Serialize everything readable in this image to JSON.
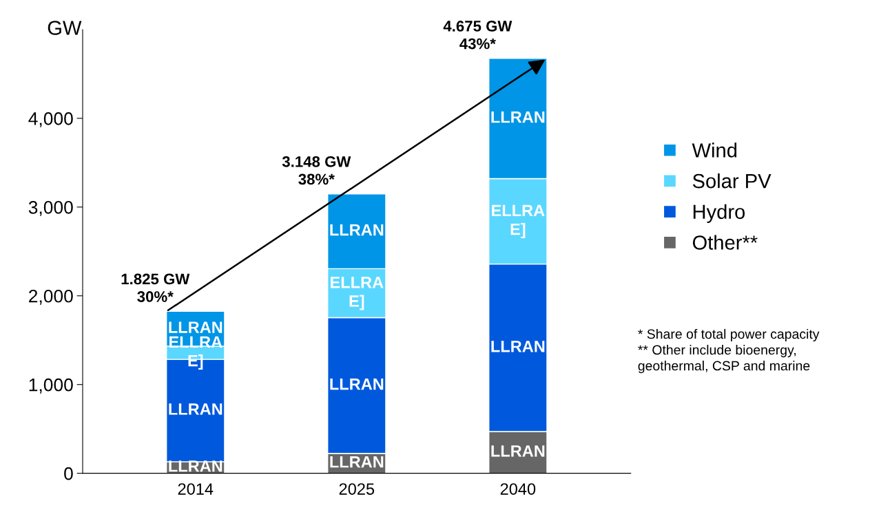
{
  "chart_data": {
    "type": "bar",
    "stacked": true,
    "ylabel": "GW",
    "categories": [
      "2014",
      "2025",
      "2040"
    ],
    "series": [
      {
        "name": "Other**",
        "color": "#666666",
        "values": [
          130,
          224,
          470
        ],
        "value_labels": [
          "LLRAN",
          "LLRAN",
          "LLRAN"
        ]
      },
      {
        "name": "Hydro",
        "color": "#0059dd",
        "values": [
          1154,
          1530,
          1888
        ],
        "value_labels": [
          "LLRAN",
          "LLRAN",
          "LLRAN"
        ]
      },
      {
        "name": "Solar PV",
        "color": "#5ad7ff",
        "values": [
          149,
          552,
          963
        ],
        "value_labels": [
          "ELLRA\nE]",
          "ELLRA\nE]",
          "ELLRA\nE]"
        ]
      },
      {
        "name": "Wind",
        "color": "#0095e6",
        "values": [
          392,
          842,
          1354
        ],
        "value_labels": [
          "LLRAN",
          "LLRAN",
          "LLRAN"
        ]
      }
    ],
    "totals": [
      "1.825 GW\n30%*",
      "3.148 GW\n38%*",
      "4.675 GW\n43%*"
    ],
    "ylim": [
      0,
      5000
    ],
    "yticks": [
      {
        "value": 0,
        "label": "0"
      },
      {
        "value": 1000,
        "label": "1,000"
      },
      {
        "value": 2000,
        "label": "2,000"
      },
      {
        "value": 3000,
        "label": "3,000"
      },
      {
        "value": 4000,
        "label": "4,000"
      }
    ],
    "legend": "right",
    "grid": false,
    "marker": "square",
    "annotations": [
      "* Share of total power capacity\n** Other include bioenergy,\ngeothermal, CSP and marine"
    ]
  }
}
